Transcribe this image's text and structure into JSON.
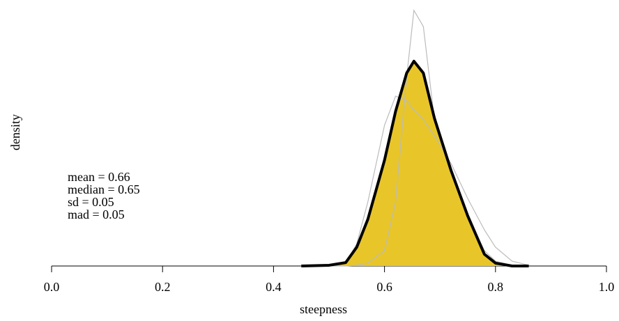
{
  "chart_data": {
    "type": "area",
    "xlabel": "steepness",
    "ylabel": "density",
    "annotations": [
      "mean =  0.66",
      "median =  0.65",
      "sd =  0.05",
      "mad =  0.05"
    ],
    "x": [
      0.45,
      0.5,
      0.53,
      0.55,
      0.57,
      0.6,
      0.62,
      0.64,
      0.653,
      0.67,
      0.69,
      0.72,
      0.75,
      0.78,
      0.8,
      0.83,
      0.86
    ],
    "series": [
      {
        "color": "#000000",
        "fill": "#e8c62a",
        "values": [
          0,
          0.03,
          0.14,
          0.78,
          1.94,
          4.39,
          6.42,
          8.01,
          8.5,
          8.01,
          6.13,
          3.96,
          2.08,
          0.49,
          0.12,
          0,
          0
        ]
      },
      {
        "color": "#bbbbbb",
        "values": [
          0,
          0,
          0,
          0.03,
          0.12,
          0.64,
          2.66,
          7.86,
          10.61,
          9.94,
          6.07,
          3.82,
          2.08,
          0.64,
          0.2,
          0.03,
          0
        ]
      },
      {
        "color": "#bbbbbb",
        "values": [
          0,
          0,
          0.12,
          0.92,
          2.66,
          5.84,
          7.05,
          6.85,
          6.47,
          6.07,
          5.4,
          4.25,
          2.8,
          1.5,
          0.78,
          0.2,
          0.03
        ]
      }
    ],
    "xlim": [
      0,
      1
    ],
    "ylim": [
      0,
      10.8
    ],
    "xticks": [
      {
        "value": 0,
        "label": "0.0"
      },
      0.2,
      0.4,
      0.6,
      0.8,
      {
        "value": 1,
        "label": "1.0"
      }
    ]
  }
}
